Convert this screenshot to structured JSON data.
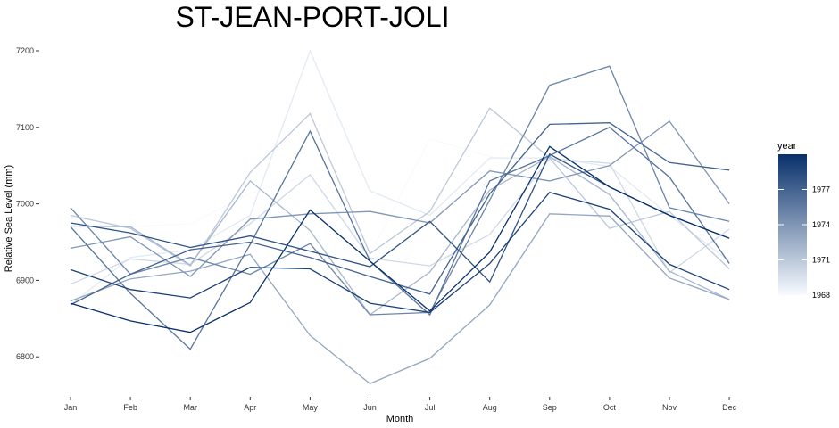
{
  "chart_data": {
    "type": "line",
    "title": "ST-JEAN-PORT-JOLI",
    "xlabel": "Month",
    "ylabel": "Relative Sea Level (mm)",
    "categories": [
      "Jan",
      "Feb",
      "Mar",
      "Apr",
      "May",
      "Jun",
      "Jul",
      "Aug",
      "Sep",
      "Oct",
      "Nov",
      "Dec"
    ],
    "y_ticks": [
      6800,
      6900,
      7000,
      7100,
      7200
    ],
    "ylim": [
      6755,
      7210
    ],
    "grid": false,
    "legend": {
      "title": "year",
      "placement": "right",
      "labels": [
        "1977",
        "1974",
        "1971",
        "1968"
      ],
      "label_values": [
        1977,
        1974,
        1971,
        1968
      ],
      "range": [
        1968,
        1980
      ],
      "color_low": "#f7fbff",
      "color_high": "#08306b"
    },
    "series": [
      {
        "year": 1968,
        "values": [
          6983,
          6970,
          6974,
          7014,
          7038,
          6934,
          7085,
          7062,
          7050,
          6970,
          7000,
          6963
        ]
      },
      {
        "year": 1969,
        "values": [
          6868,
          6930,
          6940,
          6985,
          7200,
          7017,
          6985,
          7060,
          7060,
          7049,
          6985,
          6925
        ]
      },
      {
        "year": 1970,
        "values": [
          6895,
          6928,
          6921,
          6974,
          7038,
          6929,
          6919,
          6960,
          7059,
          7053,
          6910,
          6967
        ]
      },
      {
        "year": 1971,
        "values": [
          6985,
          6968,
          6919,
          7041,
          7118,
          6935,
          6990,
          7125,
          7060,
          6968,
          6990,
          6915
        ]
      },
      {
        "year": 1972,
        "values": [
          6971,
          6970,
          6920,
          7030,
          6965,
          6855,
          6911,
          7018,
          7062,
          7012,
          6912,
          6875
        ]
      },
      {
        "year": 1973,
        "values": [
          6873,
          6902,
          6912,
          6934,
          6828,
          6765,
          6798,
          6868,
          6987,
          6984,
          6903,
          6875
        ]
      },
      {
        "year": 1974,
        "values": [
          6942,
          6957,
          6905,
          6980,
          6987,
          6990,
          6975,
          7043,
          7030,
          7050,
          7108,
          7000
        ]
      },
      {
        "year": 1975,
        "values": [
          6995,
          6908,
          6930,
          6908,
          6948,
          6855,
          6858,
          7005,
          7155,
          7180,
          6995,
          6977
        ]
      },
      {
        "year": 1976,
        "values": [
          6970,
          6883,
          6810,
          6947,
          7095,
          6925,
          6855,
          7030,
          7063,
          7100,
          7035,
          6922
        ]
      },
      {
        "year": 1977,
        "values": [
          6868,
          6908,
          6940,
          6950,
          6930,
          6905,
          6882,
          7013,
          7104,
          7106,
          7054,
          7044
        ]
      },
      {
        "year": 1978,
        "values": [
          6975,
          6962,
          6943,
          6958,
          6938,
          6918,
          6977,
          6898,
          7065,
          7022,
          6985,
          6955
        ]
      },
      {
        "year": 1979,
        "values": [
          6914,
          6888,
          6877,
          6917,
          6915,
          6870,
          6858,
          6922,
          7015,
          6993,
          6921,
          6888
        ]
      },
      {
        "year": 1980,
        "values": [
          6870,
          6847,
          6832,
          6871,
          6992,
          6925,
          6860,
          6937,
          7075,
          7022,
          6985,
          6955
        ]
      }
    ]
  }
}
